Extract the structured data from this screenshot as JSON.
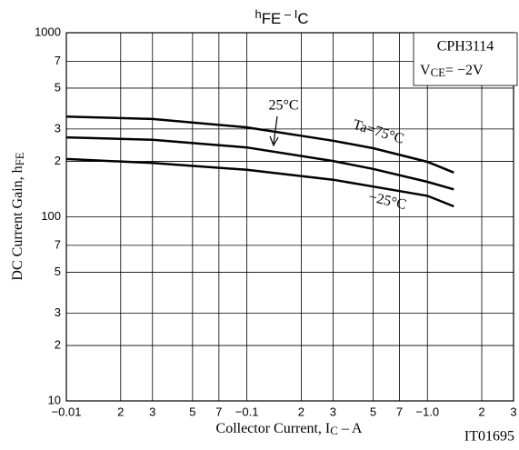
{
  "chart_data": {
    "type": "line",
    "title": [
      "h",
      "FE",
      "  –  I",
      "C"
    ],
    "x_label": [
      "Collector Current, I",
      "C",
      "  –  A"
    ],
    "y_label": [
      "DC Current Gain, h",
      "FE"
    ],
    "device": "CPH3114",
    "condition": [
      "V",
      "CE",
      "= −2V"
    ],
    "figure_id": "IT01695",
    "log_x": true,
    "log_y": true,
    "grid": true,
    "xlim": [
      0.01,
      3
    ],
    "ylim": [
      10,
      1000
    ],
    "xticks": [
      {
        "value": 0.01,
        "label": "−0.01"
      },
      {
        "value": 0.02,
        "label": "2"
      },
      {
        "value": 0.03,
        "label": "3"
      },
      {
        "value": 0.05,
        "label": "5"
      },
      {
        "value": 0.07,
        "label": "7"
      },
      {
        "value": 0.1,
        "label": "−0.1"
      },
      {
        "value": 0.2,
        "label": "2"
      },
      {
        "value": 0.3,
        "label": "3"
      },
      {
        "value": 0.5,
        "label": "5"
      },
      {
        "value": 0.7,
        "label": "7"
      },
      {
        "value": 1,
        "label": "−1.0"
      },
      {
        "value": 2,
        "label": "2"
      },
      {
        "value": 3,
        "label": "3"
      }
    ],
    "yticks": [
      10,
      {
        "value": 20,
        "label": "2"
      },
      {
        "value": 30,
        "label": "3"
      },
      {
        "value": 50,
        "label": "5"
      },
      {
        "value": 70,
        "label": "7"
      },
      100,
      {
        "value": 200,
        "label": "2"
      },
      {
        "value": 300,
        "label": "3"
      },
      {
        "value": 500,
        "label": "5"
      },
      {
        "value": 700,
        "label": "7"
      },
      1000
    ],
    "x": [
      0.01,
      0.03,
      0.1,
      0.3,
      0.5,
      1.0,
      1.4
    ],
    "series": [
      {
        "name": "Ta=75°C",
        "color": "#000000",
        "values": [
          350,
          340,
          306,
          259,
          236,
          199,
          174
        ]
      },
      {
        "name": "25°C",
        "color": "#000000",
        "values": [
          270,
          262,
          238,
          201,
          182,
          155,
          141
        ]
      },
      {
        "name": "−25°C",
        "color": "#000000",
        "values": [
          206,
          196,
          180,
          159,
          146,
          130,
          114
        ]
      }
    ]
  }
}
